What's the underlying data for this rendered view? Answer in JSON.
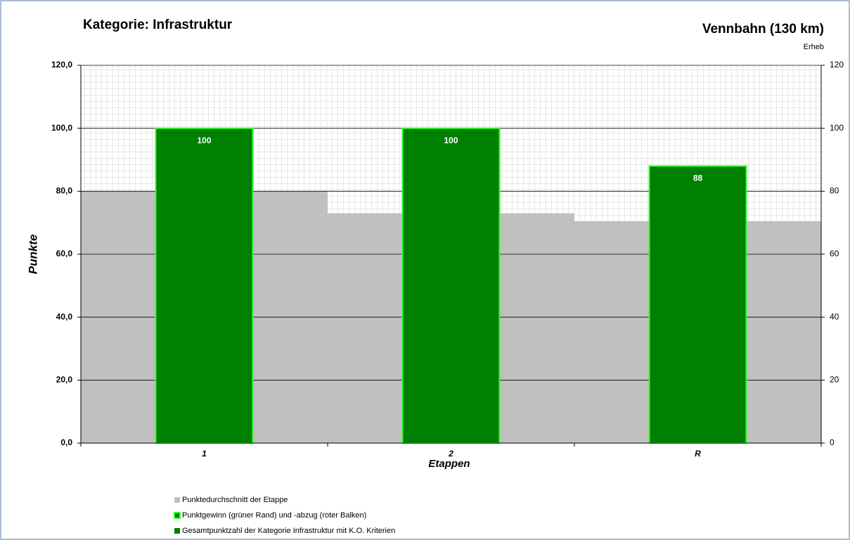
{
  "chart_data": {
    "type": "bar",
    "title": "Kategorie: Infrastruktur",
    "subtitle": "Vennbahn (130 km)",
    "annotation": "Erheb",
    "y_label": "Punkte",
    "x_label": "Etappen",
    "categories": [
      "1",
      "2",
      "R"
    ],
    "series": [
      {
        "name": "Punktedurchschnitt der Etappe",
        "color": "#c0c0c0",
        "values": [
          80,
          73,
          70.5
        ],
        "style": "area"
      },
      {
        "name": "Punktgewinn (grüner Rand) und -abzug (roter Balken)",
        "color": "#33ff33",
        "values": [
          0,
          0,
          0
        ],
        "style": "gain"
      },
      {
        "name": "Gesamtpunktzahl der Kategorie Infrastruktur mit K.O. Kriterien",
        "color": "#008000",
        "values": [
          100,
          100,
          88
        ],
        "style": "bar"
      }
    ],
    "ylim": [
      0,
      120
    ],
    "yticks": [
      {
        "value": 0,
        "label": "0,0"
      },
      {
        "value": 20,
        "label": "20,0"
      },
      {
        "value": 40,
        "label": "40,0"
      },
      {
        "value": 60,
        "label": "60,0"
      },
      {
        "value": 80,
        "label": "80,0"
      },
      {
        "value": 100,
        "label": "100,0"
      },
      {
        "value": 120,
        "label": "120,0"
      }
    ],
    "y2lim": [
      0,
      120
    ],
    "y2ticks": [
      0,
      20,
      40,
      60,
      80,
      100,
      120
    ],
    "grid": true
  }
}
